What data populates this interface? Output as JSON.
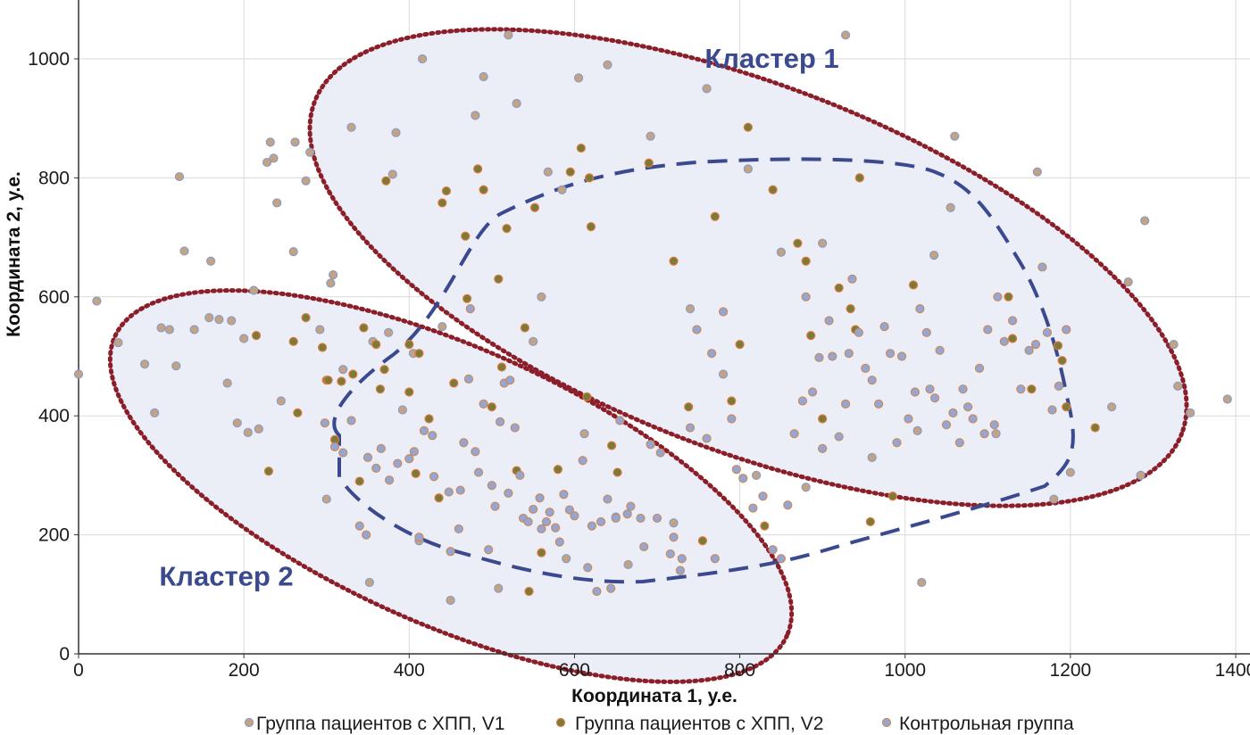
{
  "chart_data": {
    "type": "scatter",
    "xlabel": "Координата 1, у.е.",
    "ylabel": "Координата 2, у.е.",
    "xlim": [
      0,
      1400
    ],
    "ylim": [
      0,
      1000
    ],
    "x_ticks": [
      0,
      200,
      400,
      600,
      800,
      1000,
      1200,
      1400
    ],
    "y_ticks": [
      0,
      200,
      400,
      600,
      800,
      1000
    ],
    "grid": true,
    "legend_position": "bottom",
    "colors": {
      "v1_fill": "#c4a383",
      "v1_stroke": "#8a9bc6",
      "v2_fill": "#7a7b3a",
      "v2_stroke": "#e07a3a",
      "ctrl_fill": "#95a6d4",
      "ctrl_stroke": "#c98a5a",
      "cluster_region": "#ebedf7",
      "dotted_outline": "#8b1e28",
      "dashed_outline": "#3b4a8f"
    },
    "annotations": [
      {
        "text": "Кластер 1",
        "x": 920,
        "y": 985
      },
      {
        "text": "Кластер 2",
        "x": 260,
        "y": 115
      }
    ],
    "series": [
      {
        "name": "Группа пациентов с ХПП, V1",
        "points": [
          [
            0,
            470
          ],
          [
            22,
            593
          ],
          [
            48,
            523
          ],
          [
            80,
            487
          ],
          [
            92,
            405
          ],
          [
            100,
            548
          ],
          [
            110,
            545
          ],
          [
            118,
            484
          ],
          [
            122,
            802
          ],
          [
            128,
            677
          ],
          [
            140,
            545
          ],
          [
            158,
            565
          ],
          [
            160,
            660
          ],
          [
            170,
            562
          ],
          [
            180,
            455
          ],
          [
            185,
            560
          ],
          [
            192,
            388
          ],
          [
            200,
            530
          ],
          [
            205,
            372
          ],
          [
            212,
            611
          ],
          [
            218,
            378
          ],
          [
            228,
            826
          ],
          [
            232,
            860
          ],
          [
            236,
            833
          ],
          [
            240,
            758
          ],
          [
            245,
            425
          ],
          [
            260,
            676
          ],
          [
            262,
            860
          ],
          [
            275,
            795
          ],
          [
            280,
            843
          ],
          [
            292,
            545
          ],
          [
            300,
            260
          ],
          [
            305,
            623
          ],
          [
            308,
            637
          ],
          [
            320,
            478
          ],
          [
            330,
            885
          ],
          [
            352,
            120
          ],
          [
            356,
            525
          ],
          [
            375,
            540
          ],
          [
            380,
            806
          ],
          [
            384,
            876
          ],
          [
            392,
            410
          ],
          [
            405,
            505
          ],
          [
            412,
            190
          ],
          [
            416,
            1000
          ],
          [
            440,
            550
          ],
          [
            450,
            90
          ],
          [
            480,
            905
          ],
          [
            490,
            970
          ],
          [
            508,
            110
          ],
          [
            520,
            1040
          ],
          [
            530,
            925
          ],
          [
            550,
            525
          ],
          [
            560,
            600
          ],
          [
            568,
            810
          ],
          [
            585,
            780
          ],
          [
            590,
            160
          ],
          [
            605,
            968
          ],
          [
            612,
            370
          ],
          [
            640,
            990
          ],
          [
            650,
            230
          ],
          [
            665,
            150
          ],
          [
            692,
            870
          ],
          [
            720,
            220
          ],
          [
            740,
            580
          ],
          [
            760,
            950
          ],
          [
            780,
            470
          ],
          [
            810,
            815
          ],
          [
            820,
            300
          ],
          [
            850,
            675
          ],
          [
            880,
            280
          ],
          [
            900,
            690
          ],
          [
            928,
            1040
          ],
          [
            960,
            330
          ],
          [
            1015,
            375
          ],
          [
            1020,
            120
          ],
          [
            1035,
            670
          ],
          [
            1055,
            750
          ],
          [
            1060,
            870
          ],
          [
            1110,
            370
          ],
          [
            1160,
            810
          ],
          [
            1180,
            260
          ],
          [
            1200,
            305
          ],
          [
            1250,
            415
          ],
          [
            1270,
            625
          ],
          [
            1285,
            300
          ],
          [
            1290,
            728
          ],
          [
            1325,
            520
          ],
          [
            1330,
            450
          ],
          [
            1345,
            405
          ],
          [
            1390,
            428
          ]
        ]
      },
      {
        "name": "Группа пациентов с ХПП, V2",
        "points": [
          [
            215,
            535
          ],
          [
            230,
            307
          ],
          [
            260,
            525
          ],
          [
            265,
            405
          ],
          [
            275,
            565
          ],
          [
            295,
            515
          ],
          [
            300,
            460
          ],
          [
            302,
            460
          ],
          [
            310,
            360
          ],
          [
            318,
            458
          ],
          [
            332,
            470
          ],
          [
            340,
            290
          ],
          [
            345,
            548
          ],
          [
            360,
            520
          ],
          [
            365,
            445
          ],
          [
            370,
            478
          ],
          [
            372,
            795
          ],
          [
            400,
            520
          ],
          [
            400,
            440
          ],
          [
            408,
            303
          ],
          [
            412,
            505
          ],
          [
            424,
            395
          ],
          [
            436,
            262
          ],
          [
            440,
            758
          ],
          [
            445,
            778
          ],
          [
            454,
            455
          ],
          [
            468,
            702
          ],
          [
            470,
            597
          ],
          [
            483,
            815
          ],
          [
            490,
            780
          ],
          [
            500,
            415
          ],
          [
            508,
            630
          ],
          [
            512,
            482
          ],
          [
            518,
            715
          ],
          [
            530,
            308
          ],
          [
            540,
            548
          ],
          [
            545,
            105
          ],
          [
            552,
            750
          ],
          [
            560,
            170
          ],
          [
            580,
            310
          ],
          [
            595,
            810
          ],
          [
            608,
            850
          ],
          [
            615,
            432
          ],
          [
            618,
            800
          ],
          [
            620,
            718
          ],
          [
            645,
            350
          ],
          [
            652,
            305
          ],
          [
            690,
            825
          ],
          [
            720,
            660
          ],
          [
            738,
            415
          ],
          [
            755,
            190
          ],
          [
            770,
            735
          ],
          [
            790,
            425
          ],
          [
            800,
            520
          ],
          [
            810,
            885
          ],
          [
            830,
            215
          ],
          [
            840,
            780
          ],
          [
            870,
            690
          ],
          [
            880,
            660
          ],
          [
            886,
            535
          ],
          [
            900,
            395
          ],
          [
            920,
            615
          ],
          [
            934,
            580
          ],
          [
            940,
            545
          ],
          [
            945,
            800
          ],
          [
            958,
            222
          ],
          [
            985,
            265
          ],
          [
            1010,
            620
          ],
          [
            1125,
            600
          ],
          [
            1130,
            530
          ],
          [
            1153,
            445
          ],
          [
            1185,
            518
          ],
          [
            1190,
            493
          ],
          [
            1195,
            415
          ],
          [
            1230,
            380
          ]
        ]
      },
      {
        "name": "Контрольная группа",
        "points": [
          [
            298,
            388
          ],
          [
            310,
            348
          ],
          [
            320,
            338
          ],
          [
            330,
            392
          ],
          [
            340,
            215
          ],
          [
            348,
            200
          ],
          [
            350,
            330
          ],
          [
            360,
            312
          ],
          [
            366,
            345
          ],
          [
            376,
            292
          ],
          [
            386,
            320
          ],
          [
            400,
            328
          ],
          [
            406,
            340
          ],
          [
            412,
            196
          ],
          [
            418,
            375
          ],
          [
            428,
            367
          ],
          [
            430,
            298
          ],
          [
            448,
            272
          ],
          [
            450,
            172
          ],
          [
            460,
            210
          ],
          [
            462,
            275
          ],
          [
            466,
            355
          ],
          [
            472,
            462
          ],
          [
            474,
            580
          ],
          [
            480,
            340
          ],
          [
            484,
            305
          ],
          [
            490,
            420
          ],
          [
            496,
            175
          ],
          [
            500,
            283
          ],
          [
            504,
            248
          ],
          [
            510,
            390
          ],
          [
            515,
            455
          ],
          [
            520,
            270
          ],
          [
            522,
            460
          ],
          [
            528,
            380
          ],
          [
            534,
            300
          ],
          [
            538,
            228
          ],
          [
            544,
            222
          ],
          [
            550,
            243
          ],
          [
            558,
            262
          ],
          [
            560,
            210
          ],
          [
            566,
            222
          ],
          [
            570,
            238
          ],
          [
            577,
            212
          ],
          [
            582,
            188
          ],
          [
            587,
            268
          ],
          [
            594,
            242
          ],
          [
            600,
            232
          ],
          [
            610,
            325
          ],
          [
            616,
            145
          ],
          [
            621,
            215
          ],
          [
            627,
            105
          ],
          [
            632,
            222
          ],
          [
            640,
            260
          ],
          [
            644,
            110
          ],
          [
            650,
            228
          ],
          [
            655,
            392
          ],
          [
            664,
            235
          ],
          [
            668,
            248
          ],
          [
            680,
            228
          ],
          [
            684,
            180
          ],
          [
            692,
            352
          ],
          [
            700,
            228
          ],
          [
            704,
            338
          ],
          [
            716,
            168
          ],
          [
            720,
            196
          ],
          [
            728,
            140
          ],
          [
            730,
            160
          ],
          [
            740,
            380
          ],
          [
            748,
            545
          ],
          [
            760,
            362
          ],
          [
            766,
            505
          ],
          [
            770,
            160
          ],
          [
            780,
            575
          ],
          [
            790,
            395
          ],
          [
            796,
            310
          ],
          [
            804,
            295
          ],
          [
            816,
            245
          ],
          [
            828,
            265
          ],
          [
            840,
            175
          ],
          [
            850,
            160
          ],
          [
            858,
            250
          ],
          [
            866,
            370
          ],
          [
            876,
            425
          ],
          [
            880,
            600
          ],
          [
            888,
            440
          ],
          [
            896,
            498
          ],
          [
            900,
            345
          ],
          [
            908,
            560
          ],
          [
            912,
            500
          ],
          [
            920,
            365
          ],
          [
            928,
            420
          ],
          [
            932,
            505
          ],
          [
            936,
            630
          ],
          [
            944,
            540
          ],
          [
            952,
            480
          ],
          [
            960,
            460
          ],
          [
            968,
            420
          ],
          [
            975,
            550
          ],
          [
            982,
            505
          ],
          [
            990,
            355
          ],
          [
            996,
            500
          ],
          [
            1004,
            395
          ],
          [
            1012,
            440
          ],
          [
            1018,
            580
          ],
          [
            1026,
            540
          ],
          [
            1030,
            445
          ],
          [
            1036,
            430
          ],
          [
            1042,
            510
          ],
          [
            1050,
            385
          ],
          [
            1058,
            405
          ],
          [
            1066,
            355
          ],
          [
            1070,
            445
          ],
          [
            1076,
            415
          ],
          [
            1082,
            395
          ],
          [
            1090,
            480
          ],
          [
            1096,
            370
          ],
          [
            1100,
            545
          ],
          [
            1108,
            385
          ],
          [
            1112,
            600
          ],
          [
            1120,
            525
          ],
          [
            1130,
            560
          ],
          [
            1140,
            445
          ],
          [
            1150,
            510
          ],
          [
            1158,
            520
          ],
          [
            1166,
            650
          ],
          [
            1172,
            540
          ],
          [
            1178,
            410
          ],
          [
            1186,
            450
          ],
          [
            1195,
            545
          ]
        ]
      }
    ]
  },
  "legend": {
    "items": [
      {
        "label": "Группа пациентов с ХПП, V1"
      },
      {
        "label": "Группа пациентов с ХПП, V2"
      },
      {
        "label": "Контрольная группа"
      }
    ]
  }
}
